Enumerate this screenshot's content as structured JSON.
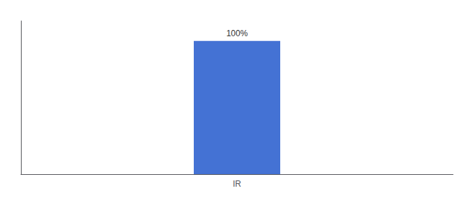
{
  "chart_data": {
    "type": "bar",
    "categories": [
      "IR"
    ],
    "values": [
      100
    ],
    "value_labels": [
      "100%"
    ],
    "data_labels": true,
    "color": "#4472d4",
    "ylim": [
      0,
      115
    ],
    "tick_labels": "x",
    "grid": false
  }
}
